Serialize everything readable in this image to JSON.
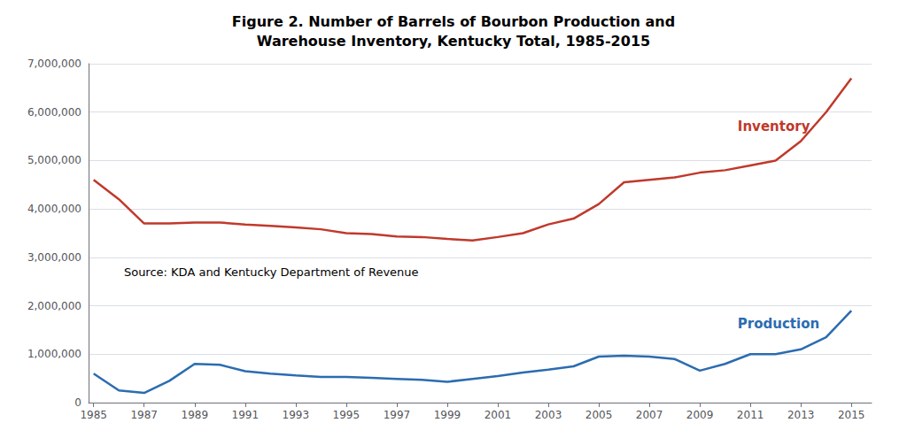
{
  "chart_data": {
    "type": "line",
    "title": "Figure 2. Number of Barrels of Bourbon Production and\nWarehouse Inventory, Kentucky Total, 1985-2015",
    "annotations": [
      "Source: KDA and Kentucky Department of Revenue"
    ],
    "x": [
      1985,
      1986,
      1987,
      1988,
      1989,
      1990,
      1991,
      1992,
      1993,
      1994,
      1995,
      1996,
      1997,
      1998,
      1999,
      2000,
      2001,
      2002,
      2003,
      2004,
      2005,
      2006,
      2007,
      2008,
      2009,
      2010,
      2011,
      2012,
      2013,
      2014,
      2015
    ],
    "series": [
      {
        "name": "Inventory",
        "color": "#C0392B",
        "values": [
          4600000,
          4200000,
          3700000,
          3700000,
          3720000,
          3720000,
          3680000,
          3650000,
          3620000,
          3580000,
          3500000,
          3480000,
          3430000,
          3420000,
          3380000,
          3350000,
          3420000,
          3500000,
          3680000,
          3800000,
          4100000,
          4550000,
          4600000,
          4650000,
          4750000,
          4800000,
          4900000,
          5000000,
          5400000,
          6000000,
          6700000
        ]
      },
      {
        "name": "Production",
        "color": "#2B6CB0",
        "values": [
          600000,
          250000,
          200000,
          450000,
          800000,
          780000,
          650000,
          600000,
          560000,
          530000,
          530000,
          510000,
          490000,
          470000,
          430000,
          490000,
          550000,
          620000,
          680000,
          750000,
          950000,
          970000,
          950000,
          900000,
          660000,
          800000,
          1000000,
          1000000,
          1100000,
          1350000,
          1900000
        ]
      }
    ],
    "xlim": [
      1984.8,
      2015.8
    ],
    "xticks": [
      1985,
      1987,
      1989,
      1991,
      1993,
      1995,
      1997,
      1999,
      2001,
      2003,
      2005,
      2007,
      2009,
      2011,
      2013,
      2015
    ],
    "ylim": [
      0,
      7000000
    ],
    "yticks": [
      0,
      {
        "value": 1000000,
        "label": "1,000,000"
      },
      {
        "value": 2000000,
        "label": "2,000,000"
      },
      {
        "value": 3000000,
        "label": "3,000,000"
      },
      {
        "value": 4000000,
        "label": "4,000,000"
      },
      {
        "value": 5000000,
        "label": "5,000,000"
      },
      {
        "value": 6000000,
        "label": "6,000,000"
      },
      {
        "value": 7000000,
        "label": "7,000,000"
      }
    ],
    "grid": true
  }
}
